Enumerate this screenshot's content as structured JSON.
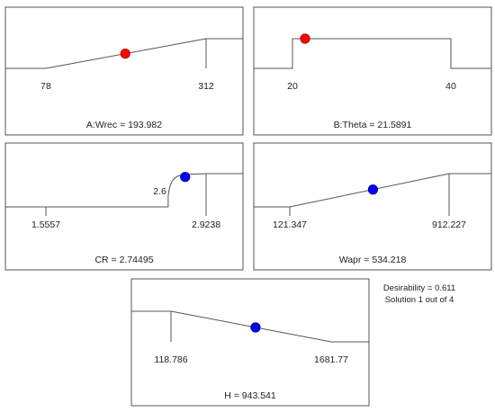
{
  "chart_data": [
    {
      "type": "line",
      "factor": "A:Wrec",
      "caption": "A:Wrec = 193.982",
      "xlim": [
        78,
        312
      ],
      "tick_labels": [
        "78",
        "312"
      ],
      "curve": {
        "x": [
          78,
          312
        ],
        "y": [
          0,
          1
        ]
      },
      "solution": {
        "x": 193.982,
        "y": 0.496
      },
      "marker_color": "#ff0000"
    },
    {
      "type": "line",
      "factor": "B:Theta",
      "caption": "B:Theta = 21.5891",
      "xlim": [
        20,
        40
      ],
      "tick_labels": [
        "20",
        "40"
      ],
      "curve": {
        "x": [
          20,
          40
        ],
        "y": [
          1,
          1
        ]
      },
      "solution": {
        "x": 21.5891,
        "y": 1
      },
      "marker_color": "#ff0000"
    },
    {
      "type": "line",
      "factor": "CR",
      "caption": "CR = 2.74495",
      "xlim": [
        1.5557,
        2.9238
      ],
      "tick_labels": [
        "1.5557",
        "2.9238"
      ],
      "annotations": [
        {
          "text": "2.6",
          "x": 2.6
        }
      ],
      "curve": {
        "x": [
          1.5557,
          2.6,
          2.63,
          2.72,
          2.9238
        ],
        "y": [
          0,
          0,
          0.65,
          0.88,
          1
        ]
      },
      "solution": {
        "x": 2.74495,
        "y": 0.9
      },
      "marker_color": "#0000ff"
    },
    {
      "type": "line",
      "factor": "Wapr",
      "caption": "Wapr = 534.218",
      "xlim": [
        121.347,
        912.227
      ],
      "tick_labels": [
        "121.347",
        "912.227"
      ],
      "curve": {
        "x": [
          121.347,
          912.227
        ],
        "y": [
          0,
          1
        ]
      },
      "solution": {
        "x": 534.218,
        "y": 0.52
      },
      "marker_color": "#0000ff"
    },
    {
      "type": "line",
      "factor": "H",
      "caption": "H = 943.541",
      "xlim": [
        118.786,
        1681.77
      ],
      "tick_labels": [
        "118.786",
        "1681.77"
      ],
      "curve": {
        "x": [
          118.786,
          1681.77
        ],
        "y": [
          1,
          0
        ]
      },
      "solution": {
        "x": 943.541,
        "y": 0.47
      },
      "marker_color": "#0000ff"
    }
  ],
  "info": {
    "desirability": "Desirability = 0.611",
    "solution": "Solution 1 out of 4"
  }
}
